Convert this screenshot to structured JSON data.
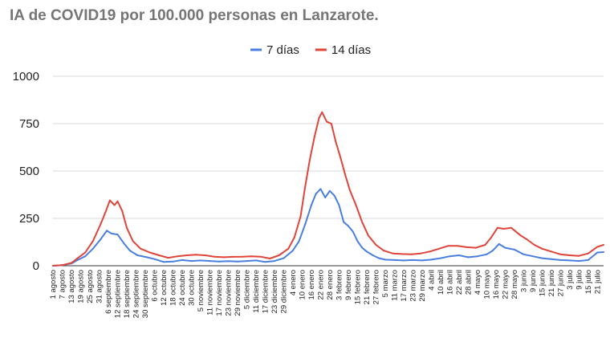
{
  "chart_data": {
    "type": "line",
    "title": "IA de COVID19 por 100.000 personas en Lanzarote.",
    "xlabel": "",
    "ylabel": "",
    "ylim": [
      0,
      1000
    ],
    "yticks": [
      0,
      250,
      500,
      750,
      1000
    ],
    "ytick_labels": [
      "0",
      "250",
      "500",
      "750",
      "1000"
    ],
    "grid": true,
    "legend_position": "top",
    "x_axis": {
      "start": "1 agosto",
      "end": "25 julio",
      "day_count": 359
    },
    "x_tick_labels": [
      "1 agosto",
      "7 agosto",
      "13 agosto",
      "19 agosto",
      "25 agosto",
      "31 agosto",
      "6 septiembre",
      "12 septiembre",
      "18 septiembre",
      "24 septiembre",
      "30 septiembre",
      "6 octubre",
      "12 octubre",
      "18 octubre",
      "24 octubre",
      "30 octubre",
      "5 noviembre",
      "11 noviembre",
      "17 noviembre",
      "23 noviembre",
      "29 noviembre",
      "5 diciembre",
      "11 diciembre",
      "17 diciembre",
      "23 diciembre",
      "29 diciembre",
      "4 enero",
      "10 enero",
      "16 enero",
      "22 enero",
      "28 enero",
      "3 febrero",
      "9 febrero",
      "15 febrero",
      "21 febrero",
      "27 febrero",
      "5 marzo",
      "11 marzo",
      "17 marzo",
      "23 marzo",
      "29 marzo",
      "4 abril",
      "10 abril",
      "16 abril",
      "22 abril",
      "28 abril",
      "4 mayo",
      "10 mayo",
      "16 mayo",
      "22 mayo",
      "28 mayo",
      "3 junio",
      "9 junio",
      "15 junio",
      "21 junio",
      "27 junio",
      "3 julio",
      "9 julio",
      "15 julio",
      "21 julio"
    ],
    "series": [
      {
        "name": "7 días",
        "color": "#4a7fe0",
        "points": [
          [
            "1 agosto",
            0
          ],
          [
            "7 agosto",
            3
          ],
          [
            "13 agosto",
            12
          ],
          [
            "17 agosto",
            30
          ],
          [
            "22 agosto",
            50
          ],
          [
            "27 agosto",
            90
          ],
          [
            "1 septiembre",
            140
          ],
          [
            "5 septiembre",
            185
          ],
          [
            "8 septiembre",
            170
          ],
          [
            "12 septiembre",
            165
          ],
          [
            "16 septiembre",
            120
          ],
          [
            "20 septiembre",
            80
          ],
          [
            "25 septiembre",
            55
          ],
          [
            "1 octubre",
            45
          ],
          [
            "6 octubre",
            35
          ],
          [
            "12 octubre",
            20
          ],
          [
            "18 octubre",
            22
          ],
          [
            "24 octubre",
            30
          ],
          [
            "30 octubre",
            25
          ],
          [
            "5 noviembre",
            28
          ],
          [
            "11 noviembre",
            25
          ],
          [
            "17 noviembre",
            22
          ],
          [
            "23 noviembre",
            24
          ],
          [
            "29 noviembre",
            22
          ],
          [
            "5 diciembre",
            25
          ],
          [
            "11 diciembre",
            28
          ],
          [
            "17 diciembre",
            20
          ],
          [
            "23 diciembre",
            25
          ],
          [
            "29 diciembre",
            40
          ],
          [
            "4 enero",
            80
          ],
          [
            "8 enero",
            130
          ],
          [
            "12 enero",
            220
          ],
          [
            "16 enero",
            320
          ],
          [
            "19 enero",
            380
          ],
          [
            "22 enero",
            405
          ],
          [
            "25 enero",
            360
          ],
          [
            "28 enero",
            395
          ],
          [
            "31 enero",
            370
          ],
          [
            "3 febrero",
            320
          ],
          [
            "6 febrero",
            230
          ],
          [
            "9 febrero",
            210
          ],
          [
            "12 febrero",
            180
          ],
          [
            "15 febrero",
            130
          ],
          [
            "18 febrero",
            95
          ],
          [
            "21 febrero",
            75
          ],
          [
            "25 febrero",
            55
          ],
          [
            "1 marzo",
            40
          ],
          [
            "5 marzo",
            32
          ],
          [
            "11 marzo",
            30
          ],
          [
            "17 marzo",
            28
          ],
          [
            "23 marzo",
            30
          ],
          [
            "29 marzo",
            28
          ],
          [
            "4 abril",
            32
          ],
          [
            "10 abril",
            40
          ],
          [
            "16 abril",
            50
          ],
          [
            "22 abril",
            55
          ],
          [
            "28 abril",
            45
          ],
          [
            "4 mayo",
            50
          ],
          [
            "10 mayo",
            60
          ],
          [
            "14 mayo",
            80
          ],
          [
            "18 mayo",
            115
          ],
          [
            "22 mayo",
            95
          ],
          [
            "28 mayo",
            85
          ],
          [
            "3 junio",
            60
          ],
          [
            "9 junio",
            50
          ],
          [
            "15 junio",
            40
          ],
          [
            "21 junio",
            35
          ],
          [
            "27 junio",
            30
          ],
          [
            "3 julio",
            28
          ],
          [
            "9 julio",
            25
          ],
          [
            "15 julio",
            30
          ],
          [
            "21 julio",
            70
          ],
          [
            "25 julio",
            72
          ]
        ]
      },
      {
        "name": "14 días",
        "color": "#e0443a",
        "points": [
          [
            "1 agosto",
            0
          ],
          [
            "7 agosto",
            3
          ],
          [
            "13 agosto",
            15
          ],
          [
            "17 agosto",
            40
          ],
          [
            "22 agosto",
            70
          ],
          [
            "27 agosto",
            130
          ],
          [
            "1 septiembre",
            220
          ],
          [
            "4 septiembre",
            280
          ],
          [
            "7 septiembre",
            345
          ],
          [
            "10 septiembre",
            320
          ],
          [
            "12 septiembre",
            340
          ],
          [
            "15 septiembre",
            290
          ],
          [
            "18 septiembre",
            200
          ],
          [
            "22 septiembre",
            130
          ],
          [
            "27 septiembre",
            90
          ],
          [
            "3 octubre",
            70
          ],
          [
            "9 octubre",
            55
          ],
          [
            "15 octubre",
            42
          ],
          [
            "21 octubre",
            50
          ],
          [
            "27 octubre",
            55
          ],
          [
            "2 noviembre",
            58
          ],
          [
            "8 noviembre",
            55
          ],
          [
            "14 noviembre",
            48
          ],
          [
            "20 noviembre",
            45
          ],
          [
            "26 noviembre",
            47
          ],
          [
            "2 diciembre",
            48
          ],
          [
            "8 diciembre",
            50
          ],
          [
            "14 diciembre",
            48
          ],
          [
            "20 diciembre",
            38
          ],
          [
            "26 diciembre",
            55
          ],
          [
            "1 enero",
            90
          ],
          [
            "5 enero",
            150
          ],
          [
            "9 enero",
            260
          ],
          [
            "12 enero",
            420
          ],
          [
            "15 enero",
            560
          ],
          [
            "18 enero",
            680
          ],
          [
            "21 enero",
            780
          ],
          [
            "23 enero",
            810
          ],
          [
            "26 enero",
            760
          ],
          [
            "29 enero",
            750
          ],
          [
            "1 febrero",
            650
          ],
          [
            "4 febrero",
            570
          ],
          [
            "7 febrero",
            480
          ],
          [
            "10 febrero",
            400
          ],
          [
            "14 febrero",
            320
          ],
          [
            "18 febrero",
            230
          ],
          [
            "22 febrero",
            160
          ],
          [
            "27 febrero",
            110
          ],
          [
            "4 marzo",
            80
          ],
          [
            "10 marzo",
            65
          ],
          [
            "16 marzo",
            62
          ],
          [
            "22 marzo",
            60
          ],
          [
            "28 marzo",
            65
          ],
          [
            "3 abril",
            75
          ],
          [
            "9 abril",
            90
          ],
          [
            "15 abril",
            105
          ],
          [
            "21 abril",
            105
          ],
          [
            "27 abril",
            98
          ],
          [
            "3 mayo",
            95
          ],
          [
            "9 mayo",
            110
          ],
          [
            "13 mayo",
            150
          ],
          [
            "17 mayo",
            200
          ],
          [
            "21 mayo",
            195
          ],
          [
            "26 mayo",
            200
          ],
          [
            "1 junio",
            160
          ],
          [
            "5 junio",
            140
          ],
          [
            "10 junio",
            110
          ],
          [
            "15 junio",
            90
          ],
          [
            "21 junio",
            75
          ],
          [
            "27 junio",
            60
          ],
          [
            "3 julio",
            55
          ],
          [
            "9 julio",
            52
          ],
          [
            "15 julio",
            65
          ],
          [
            "21 julio",
            100
          ],
          [
            "25 julio",
            110
          ]
        ]
      }
    ]
  }
}
